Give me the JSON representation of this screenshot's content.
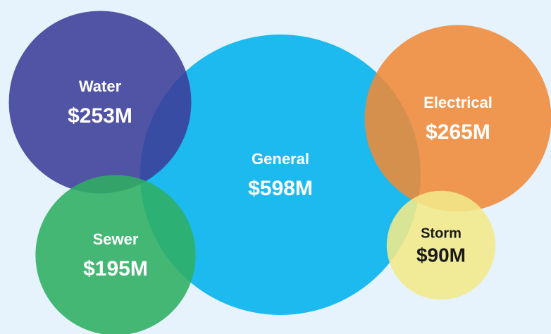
{
  "chart_data": {
    "type": "bubble",
    "categories": [
      "General",
      "Water",
      "Sewer",
      "Electrical",
      "Storm"
    ],
    "values": [
      598,
      253,
      195,
      265,
      90
    ],
    "value_labels": [
      "$598M",
      "$253M",
      "$195M",
      "$265M",
      "$90M"
    ],
    "colors": [
      "#00b2ec",
      "#3c3c98",
      "#2fae62",
      "#f08a38",
      "#f3e98a"
    ],
    "label_colors": [
      "#ffffff",
      "#ffffff",
      "#ffffff",
      "#ffffff",
      "#1a1a1a"
    ]
  }
}
